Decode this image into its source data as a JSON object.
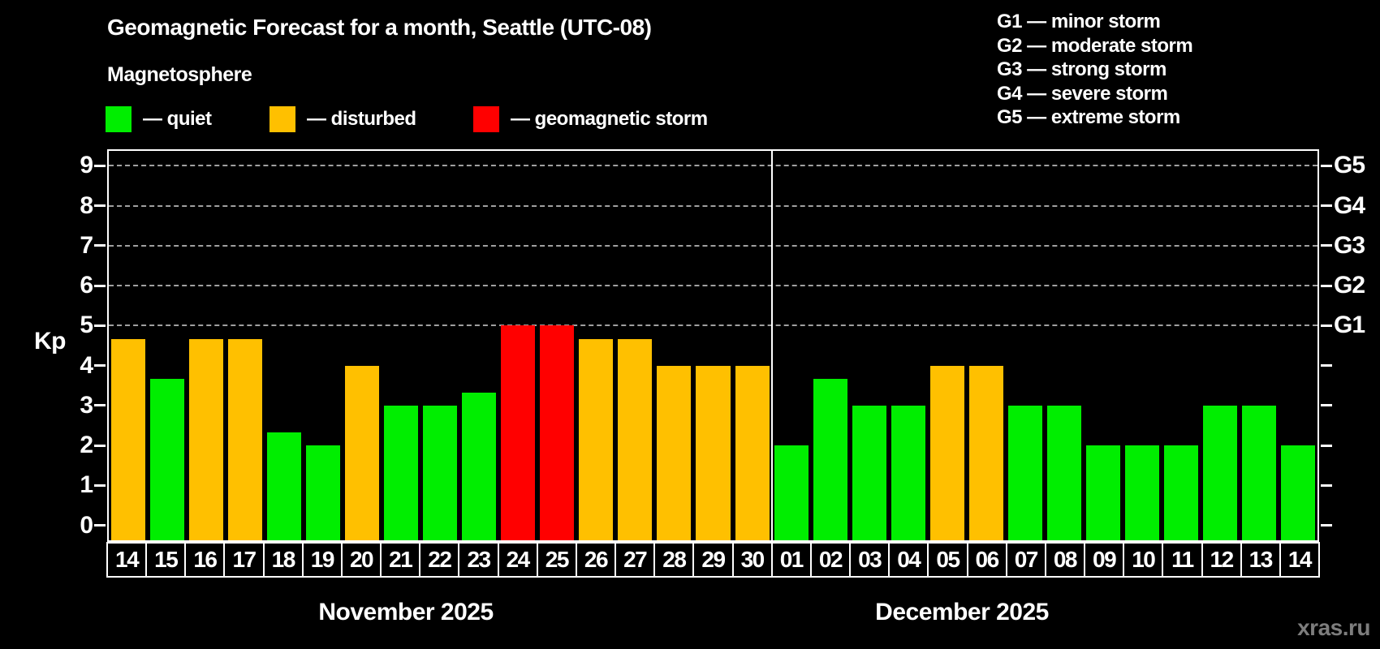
{
  "header": {
    "title": "Geomagnetic Forecast for a month, Seattle (UTC-08)",
    "subtitle": "Magnetosphere",
    "legend": [
      {
        "status": "quiet",
        "color": "#00ee00",
        "label": "— quiet"
      },
      {
        "status": "disturbed",
        "color": "#ffc000",
        "label": "— disturbed"
      },
      {
        "status": "storm",
        "color": "#ff0000",
        "label": "— geomagnetic storm"
      }
    ],
    "g_scale_legend": [
      "G1 — minor storm",
      "G2 — moderate storm",
      "G3 — strong storm",
      "G4 — severe storm",
      "G5 — extreme storm"
    ]
  },
  "watermark": "xras.ru",
  "chart_data": {
    "type": "bar",
    "ylabel": "Kp",
    "ylim": [
      -0.37,
      9.37
    ],
    "grid": "dashed horizontal at storm levels only",
    "gridlines_kp": [
      5,
      6,
      7,
      8,
      9
    ],
    "y_ticks": [
      0,
      1,
      2,
      3,
      4,
      5,
      6,
      7,
      8,
      9
    ],
    "y_labels_right": [
      {
        "kp": 5,
        "label": "G1"
      },
      {
        "kp": 6,
        "label": "G2"
      },
      {
        "kp": 7,
        "label": "G3"
      },
      {
        "kp": 8,
        "label": "G4"
      },
      {
        "kp": 9,
        "label": "G5"
      }
    ],
    "colors": {
      "quiet": "#00ee00",
      "disturbed": "#ffc000",
      "storm": "#ff0000"
    },
    "months": [
      {
        "label": "November 2025",
        "days": [
          {
            "day": "14",
            "kp": 4.67,
            "status": "disturbed"
          },
          {
            "day": "15",
            "kp": 3.67,
            "status": "quiet"
          },
          {
            "day": "16",
            "kp": 4.67,
            "status": "disturbed"
          },
          {
            "day": "17",
            "kp": 4.67,
            "status": "disturbed"
          },
          {
            "day": "18",
            "kp": 2.33,
            "status": "quiet"
          },
          {
            "day": "19",
            "kp": 2.0,
            "status": "quiet"
          },
          {
            "day": "20",
            "kp": 4.0,
            "status": "disturbed"
          },
          {
            "day": "21",
            "kp": 3.0,
            "status": "quiet"
          },
          {
            "day": "22",
            "kp": 3.0,
            "status": "quiet"
          },
          {
            "day": "23",
            "kp": 3.33,
            "status": "quiet"
          },
          {
            "day": "24",
            "kp": 5.0,
            "status": "storm"
          },
          {
            "day": "25",
            "kp": 5.0,
            "status": "storm"
          },
          {
            "day": "26",
            "kp": 4.67,
            "status": "disturbed"
          },
          {
            "day": "27",
            "kp": 4.67,
            "status": "disturbed"
          },
          {
            "day": "28",
            "kp": 4.0,
            "status": "disturbed"
          },
          {
            "day": "29",
            "kp": 4.0,
            "status": "disturbed"
          },
          {
            "day": "30",
            "kp": 4.0,
            "status": "disturbed"
          }
        ]
      },
      {
        "label": "December 2025",
        "days": [
          {
            "day": "01",
            "kp": 2.0,
            "status": "quiet"
          },
          {
            "day": "02",
            "kp": 3.67,
            "status": "quiet"
          },
          {
            "day": "03",
            "kp": 3.0,
            "status": "quiet"
          },
          {
            "day": "04",
            "kp": 3.0,
            "status": "quiet"
          },
          {
            "day": "05",
            "kp": 4.0,
            "status": "disturbed"
          },
          {
            "day": "06",
            "kp": 4.0,
            "status": "disturbed"
          },
          {
            "day": "07",
            "kp": 3.0,
            "status": "quiet"
          },
          {
            "day": "08",
            "kp": 3.0,
            "status": "quiet"
          },
          {
            "day": "09",
            "kp": 2.0,
            "status": "quiet"
          },
          {
            "day": "10",
            "kp": 2.0,
            "status": "quiet"
          },
          {
            "day": "11",
            "kp": 2.0,
            "status": "quiet"
          },
          {
            "day": "12",
            "kp": 3.0,
            "status": "quiet"
          },
          {
            "day": "13",
            "kp": 3.0,
            "status": "quiet"
          },
          {
            "day": "14",
            "kp": 2.0,
            "status": "quiet"
          }
        ]
      }
    ]
  }
}
